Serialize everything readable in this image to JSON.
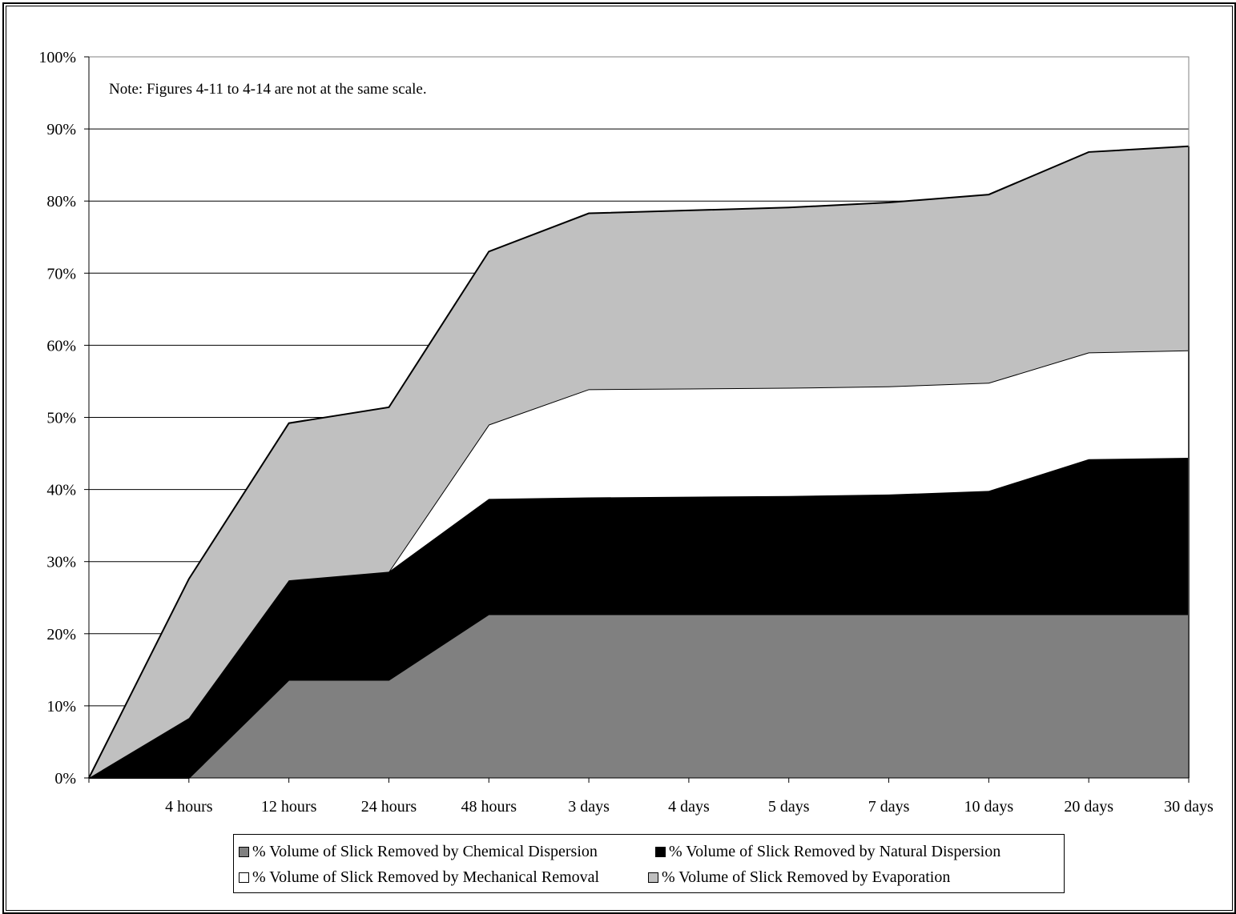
{
  "chart_data": {
    "type": "area",
    "stacked": true,
    "annotation": "Note: Figures 4-11 to 4-14 are not at the same scale.",
    "categories": [
      "",
      "4 hours",
      "12 hours",
      "24 hours",
      "48 hours",
      "3 days",
      "4 days",
      "5 days",
      "7 days",
      "10 days",
      "20 days",
      "30 days"
    ],
    "y_ticks": [
      "0%",
      "10%",
      "20%",
      "30%",
      "40%",
      "50%",
      "60%",
      "70%",
      "80%",
      "90%",
      "100%"
    ],
    "ylim": [
      0,
      100
    ],
    "grid": true,
    "legend_position": "bottom",
    "series": [
      {
        "name": "% Volume of Slick Removed by Chemical Dispersion",
        "color": "#808080",
        "values": [
          0,
          0,
          13.6,
          13.6,
          22.7,
          22.7,
          22.7,
          22.7,
          22.7,
          22.7,
          22.7,
          22.7
        ]
      },
      {
        "name": "% Volume of Slick Removed by Natural Dispersion",
        "color": "#000000",
        "values": [
          0,
          8.3,
          13.8,
          15.0,
          16.0,
          16.2,
          16.3,
          16.4,
          16.6,
          17.1,
          21.5,
          21.7
        ]
      },
      {
        "name": "% Volume of Slick Removed by Mechanical Removal",
        "color": "#ffffff",
        "values": [
          0,
          0,
          0,
          0,
          10.3,
          15.0,
          15.0,
          15.0,
          15.0,
          15.0,
          14.8,
          14.9
        ]
      },
      {
        "name": "% Volume of Slick Removed by Evaporation",
        "color": "#c0c0c0",
        "values": [
          0,
          19.3,
          21.8,
          22.8,
          24.0,
          24.4,
          24.7,
          25.0,
          25.5,
          26.1,
          27.8,
          28.3
        ]
      }
    ]
  }
}
